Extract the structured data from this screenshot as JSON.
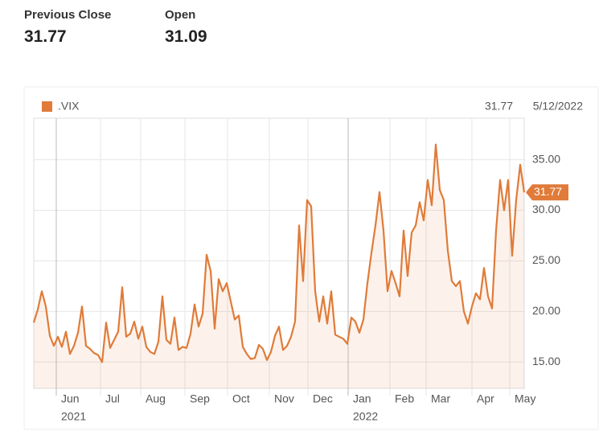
{
  "stats": [
    {
      "label": "Previous Close",
      "value": "31.77"
    },
    {
      "label": "Open",
      "value": "31.09"
    }
  ],
  "chart_data": {
    "type": "line",
    "date": "5/12/2022",
    "series": [
      {
        "name": ".VIX",
        "color": "#e07b39",
        "values": [
          18.9,
          20.2,
          22,
          20.5,
          17.6,
          16.6,
          17.5,
          16.5,
          18,
          15.8,
          16.6,
          17.9,
          20.5,
          16.6,
          16.3,
          15.9,
          15.7,
          15,
          18.9,
          16.4,
          17.2,
          18,
          22.4,
          17.5,
          17.8,
          19,
          17.3,
          18.5,
          16.5,
          16,
          15.8,
          17,
          21.5,
          17.2,
          16.8,
          19.4,
          16.2,
          16.5,
          16.4,
          17.8,
          20.7,
          18.5,
          19.8,
          25.6,
          24,
          18.3,
          23.2,
          22,
          22.8,
          21,
          19.2,
          19.6,
          16.5,
          15.8,
          15.3,
          15.4,
          16.7,
          16.3,
          15.2,
          16,
          17.6,
          18.5,
          16.2,
          16.6,
          17.5,
          19,
          28.5,
          23,
          31,
          30.4,
          22,
          19,
          21.5,
          18.8,
          22,
          17.7,
          17.5,
          17.3,
          16.8,
          19.4,
          19,
          17.9,
          19.2,
          22.8,
          25.8,
          28.5,
          31.8,
          28,
          22,
          24,
          22.8,
          21.5,
          28,
          23.5,
          27.8,
          28.5,
          30.8,
          29,
          33,
          30.5,
          36.5,
          32,
          31,
          26,
          23,
          22.5,
          23,
          20,
          18.8,
          20.5,
          21.8,
          21.2,
          24.3,
          21.5,
          20.3,
          28,
          33,
          30,
          33,
          25.5,
          31,
          34.5,
          31.77
        ]
      }
    ],
    "xlim": [
      0,
      122
    ],
    "xticks": [
      {
        "value": 5.6,
        "label": "Jun",
        "sublabel": "2021"
      },
      {
        "value": 16.6,
        "label": "Jul"
      },
      {
        "value": 26.6,
        "label": "Aug"
      },
      {
        "value": 37.6,
        "label": "Sep"
      },
      {
        "value": 48.2,
        "label": "Oct"
      },
      {
        "value": 58.6,
        "label": "Nov"
      },
      {
        "value": 68.2,
        "label": "Dec"
      },
      {
        "value": 78.2,
        "label": "Jan",
        "sublabel": "2022"
      },
      {
        "value": 88.6,
        "label": "Feb"
      },
      {
        "value": 97.6,
        "label": "Mar"
      },
      {
        "value": 109,
        "label": "Apr"
      },
      {
        "value": 118.4,
        "label": "May"
      }
    ],
    "ylim": [
      12.4,
      39.1
    ],
    "yticks": [
      {
        "value": 15,
        "label": "15.00"
      },
      {
        "value": 20,
        "label": "20.00"
      },
      {
        "value": 25,
        "label": "25.00"
      },
      {
        "value": 30,
        "label": "30.00"
      },
      {
        "value": 35,
        "label": "35.00"
      }
    ],
    "grid": true
  }
}
